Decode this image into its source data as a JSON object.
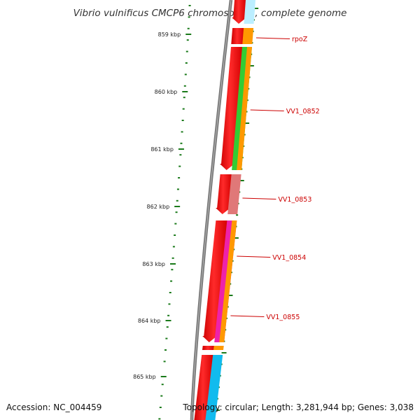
{
  "title": "Vibrio vulnificus CMCP6 chromosome I, complete genome",
  "footer": {
    "accession": "Accession: NC_004459",
    "topology": "Topology: circular; Length: 3,281,944 bp; Genes: 3,038"
  },
  "colors": {
    "backbone": "#808080",
    "forward_strand": "#ee0000",
    "ticks": "#1a7a1a",
    "gene_label": "#cc0000",
    "cog_green": "#33cc33",
    "cog_orange": "#ff9900",
    "cog_pink": "#e07878",
    "cog_magenta": "#ee22aa",
    "cog_cyan": "#11bbee",
    "cog_lightcyan": "#bbeeff"
  },
  "scale": {
    "ticks": [
      {
        "label": "859 kbp"
      },
      {
        "label": "860 kbp"
      },
      {
        "label": "861 kbp"
      },
      {
        "label": "862 kbp"
      },
      {
        "label": "863 kbp"
      },
      {
        "label": "864 kbp"
      },
      {
        "label": "865 kbp"
      }
    ]
  },
  "genes": [
    {
      "name": "",
      "cog": "cog_lightcyan"
    },
    {
      "name": "rpoZ",
      "cog": "cog_orange"
    },
    {
      "name": "VV1_0852",
      "cog": "cog_green"
    },
    {
      "name": "VV1_0853",
      "cog": "cog_pink"
    },
    {
      "name": "VV1_0854",
      "cog": "cog_magenta"
    },
    {
      "name": "VV1_0855",
      "cog": "cog_orange"
    },
    {
      "name": "",
      "cog": "cog_cyan"
    }
  ]
}
